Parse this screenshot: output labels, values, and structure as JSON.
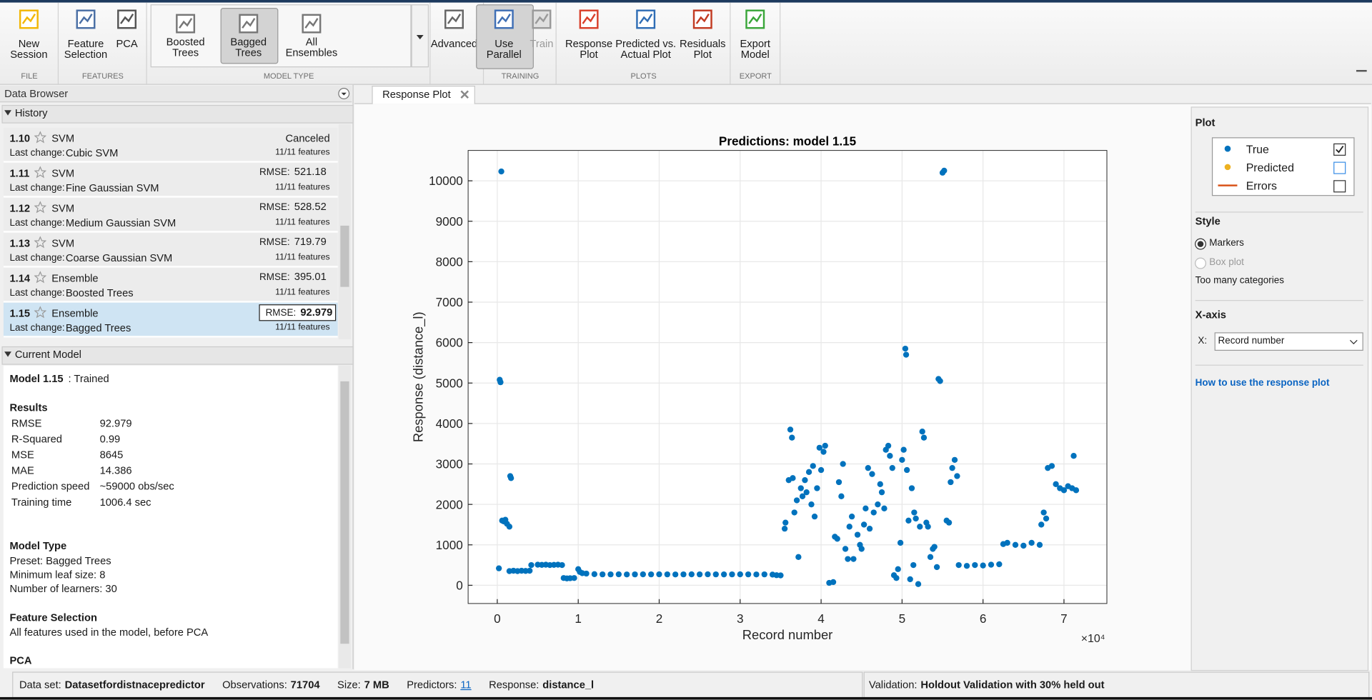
{
  "toolbar": {
    "groups": [
      {
        "label": "FILE",
        "buttons": [
          {
            "label": [
              "New",
              "Session"
            ]
          }
        ]
      },
      {
        "label": "FEATURES",
        "buttons": [
          {
            "label": [
              "Feature",
              "Selection"
            ]
          },
          {
            "label": [
              "PCA"
            ]
          }
        ]
      },
      {
        "label": "MODEL TYPE",
        "buttons": [
          {
            "label": [
              "Boosted",
              "Trees"
            ]
          },
          {
            "label": [
              "Bagged",
              "Trees"
            ],
            "state": "selected"
          },
          {
            "label": [
              "All",
              "Ensembles"
            ]
          }
        ]
      },
      {
        "buttons": [
          {
            "label": [
              "Advanced"
            ]
          }
        ]
      },
      {
        "label": "TRAINING",
        "buttons": [
          {
            "label": [
              "Use",
              "Parallel"
            ],
            "state": "selected"
          },
          {
            "label": [
              "Train"
            ],
            "state": "disabled"
          }
        ]
      },
      {
        "label": "PLOTS",
        "buttons": [
          {
            "label": [
              "Response",
              "Plot"
            ]
          },
          {
            "label": [
              "Predicted vs.",
              "Actual Plot"
            ]
          },
          {
            "label": [
              "Residuals",
              "Plot"
            ]
          }
        ]
      },
      {
        "label": "EXPORT",
        "buttons": [
          {
            "label": [
              "Export",
              "Model"
            ]
          }
        ]
      }
    ]
  },
  "data_browser": {
    "title": "Data Browser"
  },
  "history": {
    "header": "History",
    "change_label": "Last change:",
    "metric_label": "RMSE:",
    "items": [
      {
        "id": "1.10",
        "type": "SVM",
        "status": "Canceled",
        "change": "Cubic SVM",
        "features": "11/11 features"
      },
      {
        "id": "1.11",
        "type": "SVM",
        "value": 521.18,
        "change": "Fine Gaussian SVM",
        "features": "11/11 features"
      },
      {
        "id": "1.12",
        "type": "SVM",
        "value": 528.52,
        "change": "Medium Gaussian SVM",
        "features": "11/11 features"
      },
      {
        "id": "1.13",
        "type": "SVM",
        "value": 719.79,
        "change": "Coarse Gaussian SVM",
        "features": "11/11 features"
      },
      {
        "id": "1.14",
        "type": "Ensemble",
        "value": 395.01,
        "change": "Boosted Trees",
        "features": "11/11 features"
      },
      {
        "id": "1.15",
        "type": "Ensemble",
        "value": 92.979,
        "change": "Bagged Trees",
        "features": "11/11 features",
        "selected": true
      }
    ]
  },
  "current_model": {
    "header": "Current Model",
    "title": "Model 1.15",
    "status": ": Trained",
    "sections": [
      {
        "heading": "Results",
        "rows": [
          [
            "RMSE",
            92.979
          ],
          [
            "R-Squared",
            0.99
          ],
          [
            "MSE",
            8645
          ],
          [
            "MAE",
            14.386
          ],
          [
            "Prediction speed",
            "~59000 obs/sec"
          ],
          [
            "Training time",
            "1006.4 sec"
          ]
        ]
      },
      {
        "heading": "Model Type",
        "lines": [
          "Preset: Bagged Trees",
          "Minimum leaf size: 8",
          "Number of learners: 30"
        ]
      },
      {
        "heading": "Feature Selection",
        "lines": [
          "All features used in the model, before PCA"
        ]
      },
      {
        "heading": "PCA"
      }
    ]
  },
  "tab": {
    "title": "Response Plot"
  },
  "chart_data": {
    "type": "scatter",
    "title": "Predictions: model 1.15",
    "x_label": "Record number",
    "y_label": "Response (distance_l)",
    "x_multiplier": "×10⁴",
    "xlim": [
      -0.36,
      7.53
    ],
    "ylim": [
      -450,
      10750
    ],
    "xticks": [
      0,
      1,
      2,
      3,
      4,
      5,
      6,
      7
    ],
    "yticks": [
      0,
      1000,
      2000,
      3000,
      4000,
      5000,
      6000,
      7000,
      8000,
      9000,
      10000
    ],
    "grid": true,
    "series": [
      {
        "name": "True",
        "color": "#0072bd",
        "marker": "dot",
        "shown": true,
        "x": [
          0.02,
          0.03,
          0.04,
          0.05,
          0.06,
          0.08,
          0.1,
          0.12,
          0.15,
          0.16,
          0.17,
          0.15,
          0.2,
          0.25,
          0.3,
          0.35,
          0.4,
          0.42,
          0.5,
          0.55,
          0.6,
          0.65,
          0.7,
          0.75,
          0.8,
          0.82,
          0.86,
          0.9,
          0.95,
          1.0,
          1.02,
          1.05,
          1.1,
          1.2,
          1.3,
          1.4,
          1.5,
          1.6,
          1.7,
          1.8,
          1.9,
          2.0,
          2.1,
          2.2,
          2.3,
          2.4,
          2.5,
          2.6,
          2.7,
          2.8,
          2.9,
          3.0,
          3.1,
          3.2,
          3.3,
          3.4,
          3.45,
          3.5,
          3.55,
          3.56,
          3.6,
          3.62,
          3.64,
          3.65,
          3.67,
          3.7,
          3.72,
          3.75,
          3.77,
          3.8,
          3.82,
          3.85,
          3.88,
          3.9,
          3.92,
          3.95,
          3.98,
          4.0,
          4.03,
          4.05,
          4.1,
          4.15,
          4.17,
          4.2,
          4.22,
          4.25,
          4.27,
          4.3,
          4.33,
          4.35,
          4.38,
          4.4,
          4.45,
          4.48,
          4.5,
          4.53,
          4.55,
          4.58,
          4.6,
          4.63,
          4.65,
          4.7,
          4.73,
          4.75,
          4.78,
          4.8,
          4.83,
          4.85,
          4.88,
          4.9,
          4.93,
          4.95,
          4.98,
          5.0,
          5.02,
          5.04,
          5.05,
          5.06,
          5.08,
          5.1,
          5.12,
          5.14,
          5.15,
          5.17,
          5.2,
          5.22,
          5.25,
          5.27,
          5.3,
          5.32,
          5.35,
          5.38,
          5.4,
          5.43,
          5.45,
          5.47,
          5.5,
          5.52,
          5.55,
          5.58,
          5.6,
          5.62,
          5.65,
          5.68,
          5.7,
          5.8,
          5.9,
          6.0,
          6.1,
          6.2,
          6.25,
          6.3,
          6.4,
          6.5,
          6.6,
          6.7,
          6.72,
          6.75,
          6.78,
          6.8,
          6.85,
          6.9,
          6.95,
          7.0,
          7.05,
          7.1,
          7.12,
          7.15
        ],
        "values": [
          420,
          5080,
          5020,
          10230,
          1600,
          1580,
          1620,
          1520,
          1450,
          2700,
          2650,
          350,
          360,
          350,
          360,
          355,
          360,
          500,
          510,
          505,
          510,
          500,
          505,
          510,
          500,
          180,
          170,
          175,
          180,
          400,
          330,
          300,
          290,
          275,
          270,
          270,
          272,
          268,
          270,
          271,
          270,
          272,
          270,
          268,
          270,
          271,
          270,
          272,
          270,
          269,
          270,
          271,
          270,
          268,
          270,
          265,
          250,
          245,
          1400,
          1550,
          2600,
          3850,
          3650,
          2650,
          1800,
          2100,
          700,
          2400,
          2200,
          2600,
          2300,
          2800,
          2000,
          2950,
          1700,
          2400,
          3400,
          2850,
          3300,
          3450,
          60,
          80,
          1200,
          1150,
          2550,
          2200,
          3000,
          900,
          650,
          1450,
          1700,
          650,
          1250,
          1000,
          900,
          1500,
          1900,
          2900,
          1400,
          2750,
          1800,
          2000,
          2500,
          2300,
          1900,
          3350,
          3450,
          3200,
          2900,
          250,
          180,
          400,
          1050,
          3100,
          3350,
          5850,
          5700,
          2850,
          1600,
          150,
          2400,
          500,
          1800,
          1650,
          30,
          1450,
          3800,
          3650,
          1550,
          1450,
          700,
          900,
          950,
          450,
          5100,
          5050,
          10200,
          10250,
          1600,
          1550,
          2550,
          2900,
          3100,
          2700,
          500,
          480,
          500,
          490,
          510,
          520,
          1020,
          1050,
          1000,
          980,
          1050,
          1000,
          1500,
          1800,
          1650,
          2900,
          2950,
          2500,
          2400,
          2350,
          2450,
          2400,
          3200,
          2350
        ]
      },
      {
        "name": "Predicted",
        "color": "#edb120",
        "marker": "dot",
        "shown": false
      },
      {
        "name": "Errors",
        "color": "#d95319",
        "marker": "line",
        "shown": false
      }
    ]
  },
  "plot_options": {
    "heading": "Plot",
    "style_heading": "Style",
    "styles": [
      {
        "label": "Markers",
        "selected": true
      },
      {
        "label": "Box plot",
        "disabled": true
      }
    ],
    "style_note": "Too many categories",
    "xaxis_heading": "X-axis",
    "x_label": "X:",
    "x_choice": "Record number",
    "help_link": "How to use the response plot"
  },
  "status_bar": {
    "items": [
      {
        "label": "Data set:",
        "value": "Datasetfordistnacepredictor"
      },
      {
        "label": "Observations:",
        "value": 71704
      },
      {
        "label": "Size:",
        "value": "7 MB"
      },
      {
        "label": "Predictors:",
        "value": 11,
        "link": true
      },
      {
        "label": "Response:",
        "value": "distance_l"
      }
    ],
    "validation": {
      "label": "Validation:",
      "value": "Holdout Validation with 30% held out"
    }
  }
}
